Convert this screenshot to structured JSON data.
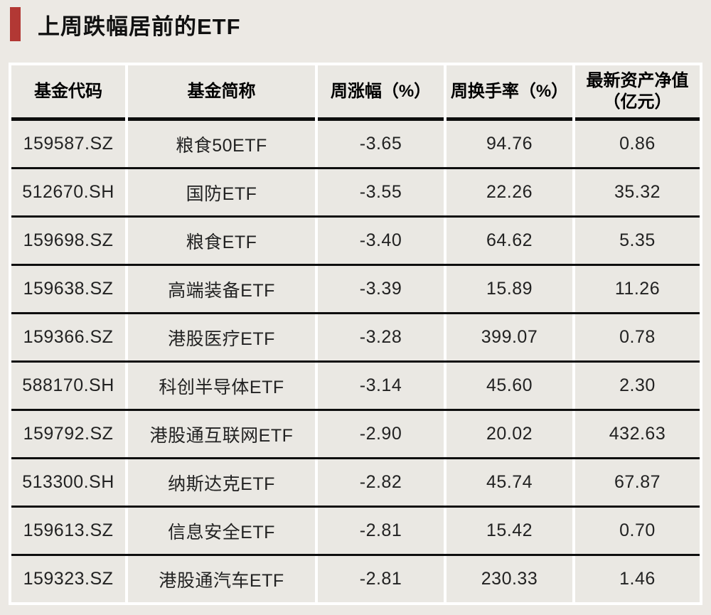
{
  "page_title": "上周跌幅居前的ETF",
  "colors": {
    "accent_red": "#B23834",
    "page_background": "#ECE9E4",
    "cell_background": "#EAE8E3",
    "grid_white": "#FFFFFF",
    "line_black": "#0E0E0E",
    "text": "#1C1C1C"
  },
  "chart_data": {
    "type": "table",
    "title": "上周跌幅居前的ETF",
    "columns": [
      {
        "key": "code",
        "label": "基金代码",
        "lines": [
          "基金代码"
        ]
      },
      {
        "key": "name",
        "label": "基金简称",
        "lines": [
          "基金简称"
        ]
      },
      {
        "key": "weekly_change_pct",
        "label": "周涨幅（%）",
        "lines": [
          "周涨幅（%）"
        ]
      },
      {
        "key": "weekly_turnover_pct",
        "label": "周换手率（%）",
        "lines": [
          "周换手率（%）"
        ]
      },
      {
        "key": "latest_nav_yi_yuan",
        "label": "最新资产净值（亿元）",
        "lines": [
          "最新资产净值",
          "（亿元）"
        ]
      }
    ],
    "rows": [
      {
        "code": "159587.SZ",
        "name": "粮食50ETF",
        "weekly_change_pct": "-3.65",
        "weekly_turnover_pct": "94.76",
        "latest_nav_yi_yuan": "0.86"
      },
      {
        "code": "512670.SH",
        "name": "国防ETF",
        "weekly_change_pct": "-3.55",
        "weekly_turnover_pct": "22.26",
        "latest_nav_yi_yuan": "35.32"
      },
      {
        "code": "159698.SZ",
        "name": "粮食ETF",
        "weekly_change_pct": "-3.40",
        "weekly_turnover_pct": "64.62",
        "latest_nav_yi_yuan": "5.35"
      },
      {
        "code": "159638.SZ",
        "name": "高端装备ETF",
        "weekly_change_pct": "-3.39",
        "weekly_turnover_pct": "15.89",
        "latest_nav_yi_yuan": "11.26"
      },
      {
        "code": "159366.SZ",
        "name": "港股医疗ETF",
        "weekly_change_pct": "-3.28",
        "weekly_turnover_pct": "399.07",
        "latest_nav_yi_yuan": "0.78"
      },
      {
        "code": "588170.SH",
        "name": "科创半导体ETF",
        "weekly_change_pct": "-3.14",
        "weekly_turnover_pct": "45.60",
        "latest_nav_yi_yuan": "2.30"
      },
      {
        "code": "159792.SZ",
        "name": "港股通互联网ETF",
        "weekly_change_pct": "-2.90",
        "weekly_turnover_pct": "20.02",
        "latest_nav_yi_yuan": "432.63"
      },
      {
        "code": "513300.SH",
        "name": "纳斯达克ETF",
        "weekly_change_pct": "-2.82",
        "weekly_turnover_pct": "45.74",
        "latest_nav_yi_yuan": "67.87"
      },
      {
        "code": "159613.SZ",
        "name": "信息安全ETF",
        "weekly_change_pct": "-2.81",
        "weekly_turnover_pct": "15.42",
        "latest_nav_yi_yuan": "0.70"
      },
      {
        "code": "159323.SZ",
        "name": "港股通汽车ETF",
        "weekly_change_pct": "-2.81",
        "weekly_turnover_pct": "230.33",
        "latest_nav_yi_yuan": "1.46"
      }
    ]
  }
}
